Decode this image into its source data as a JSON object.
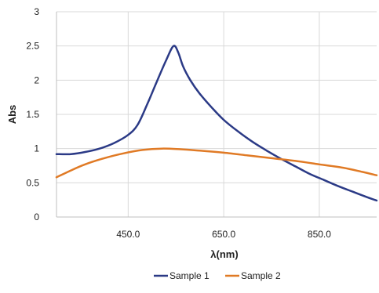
{
  "chart_data": {
    "type": "line",
    "xlabel": "λ(nm)",
    "ylabel": "Abs",
    "xlim": [
      300,
      970
    ],
    "ylim": [
      0,
      3
    ],
    "xticks": [
      450,
      650,
      850
    ],
    "xtick_labels": [
      "450.0",
      "650.0",
      "850.0"
    ],
    "yticks": [
      0,
      0.5,
      1,
      1.5,
      2,
      2.5,
      3
    ],
    "ytick_labels": [
      "0",
      "0.5",
      "1",
      "1.5",
      "2",
      "2.5",
      "3"
    ],
    "grid": true,
    "legend_position": "bottom",
    "series": [
      {
        "name": "Sample 1",
        "color": "#2b3a86",
        "x": [
          300,
          330,
          360,
          390,
          420,
          450,
          470,
          490,
          510,
          530,
          545,
          555,
          565,
          580,
          600,
          625,
          650,
          680,
          710,
          740,
          770,
          800,
          830,
          860,
          890,
          920,
          950,
          970
        ],
        "y": [
          0.92,
          0.92,
          0.95,
          1.0,
          1.08,
          1.2,
          1.35,
          1.65,
          1.98,
          2.3,
          2.5,
          2.4,
          2.2,
          2.0,
          1.8,
          1.6,
          1.42,
          1.25,
          1.1,
          0.97,
          0.85,
          0.74,
          0.63,
          0.54,
          0.45,
          0.37,
          0.29,
          0.24
        ]
      },
      {
        "name": "Sample 2",
        "color": "#e07a25",
        "x": [
          300,
          330,
          360,
          400,
          440,
          480,
          520,
          560,
          600,
          650,
          700,
          750,
          800,
          850,
          900,
          940,
          970
        ],
        "y": [
          0.58,
          0.68,
          0.77,
          0.86,
          0.93,
          0.98,
          1.0,
          0.99,
          0.97,
          0.94,
          0.9,
          0.86,
          0.82,
          0.77,
          0.72,
          0.66,
          0.61
        ]
      }
    ]
  }
}
